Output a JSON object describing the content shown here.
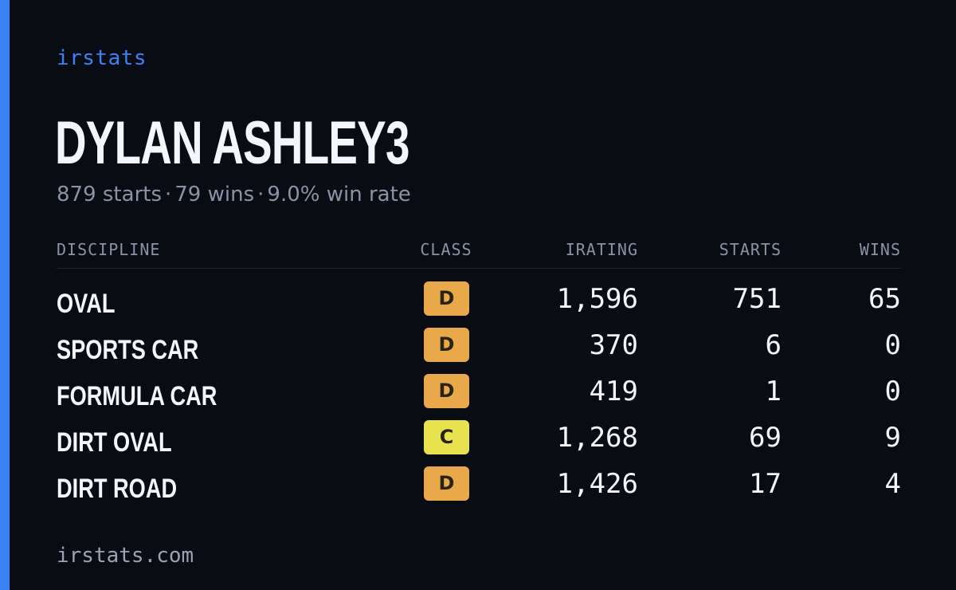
{
  "brand": "irstats",
  "driver": {
    "name": "DYLAN ASHLEY3",
    "starts_text": "879 starts",
    "wins_text": "79 wins",
    "win_rate_text": "9.0% win rate",
    "separator": "·"
  },
  "table": {
    "headers": {
      "discipline": "DISCIPLINE",
      "class": "CLASS",
      "irating": "IRATING",
      "starts": "STARTS",
      "wins": "WINS"
    },
    "rows": [
      {
        "discipline": "OVAL",
        "class": "D",
        "irating": "1,596",
        "starts": "751",
        "wins": "65"
      },
      {
        "discipline": "SPORTS CAR",
        "class": "D",
        "irating": "370",
        "starts": "6",
        "wins": "0"
      },
      {
        "discipline": "FORMULA CAR",
        "class": "D",
        "irating": "419",
        "starts": "1",
        "wins": "0"
      },
      {
        "discipline": "DIRT OVAL",
        "class": "C",
        "irating": "1,268",
        "starts": "69",
        "wins": "9"
      },
      {
        "discipline": "DIRT ROAD",
        "class": "D",
        "irating": "1,426",
        "starts": "17",
        "wins": "4"
      }
    ]
  },
  "class_colors": {
    "D": "#e9a94b",
    "C": "#e8e24f"
  },
  "accent_color": "#3b82f6",
  "footer": {
    "domain": "irstats.com"
  }
}
